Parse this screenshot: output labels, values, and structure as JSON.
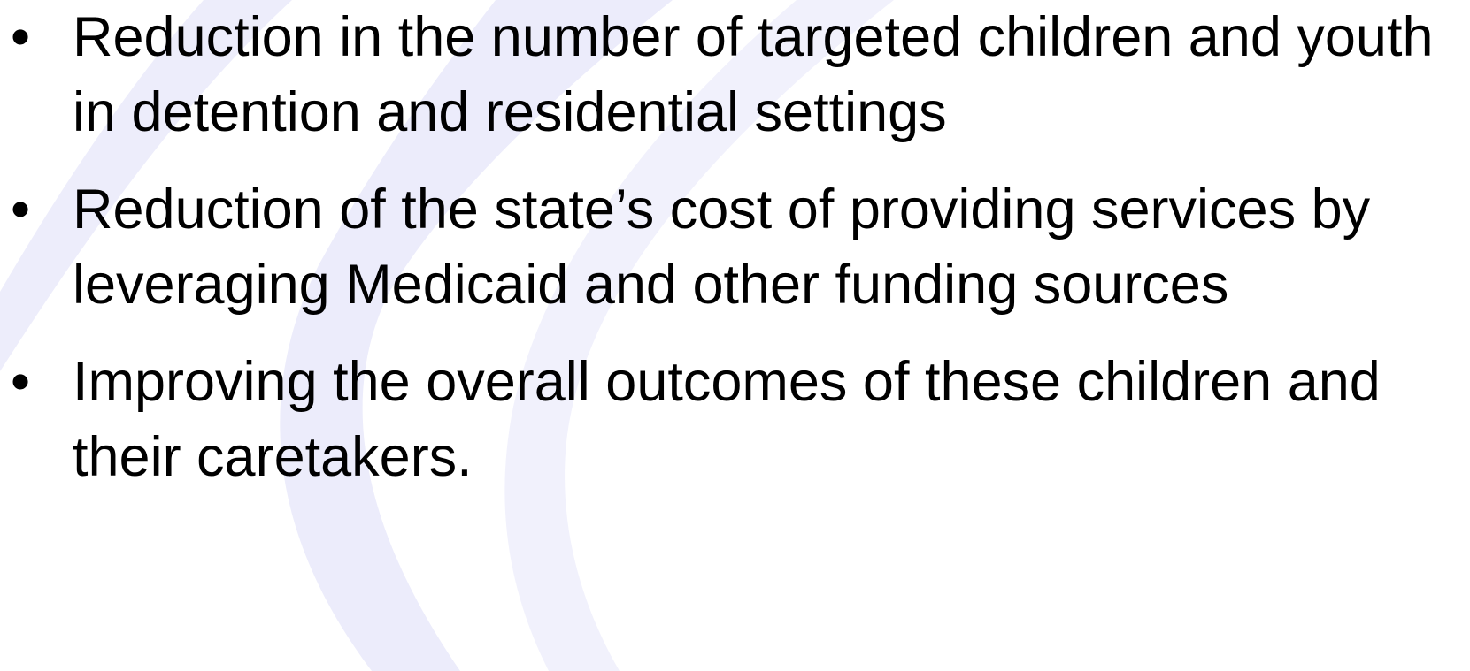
{
  "bullets": [
    "Reduction in the number of targeted children and youth in detention and residential settings",
    "Reduction of the state’s cost of providing services by leveraging Medicaid and other funding sources",
    "Improving the overall outcomes of these children and their caretakers."
  ]
}
